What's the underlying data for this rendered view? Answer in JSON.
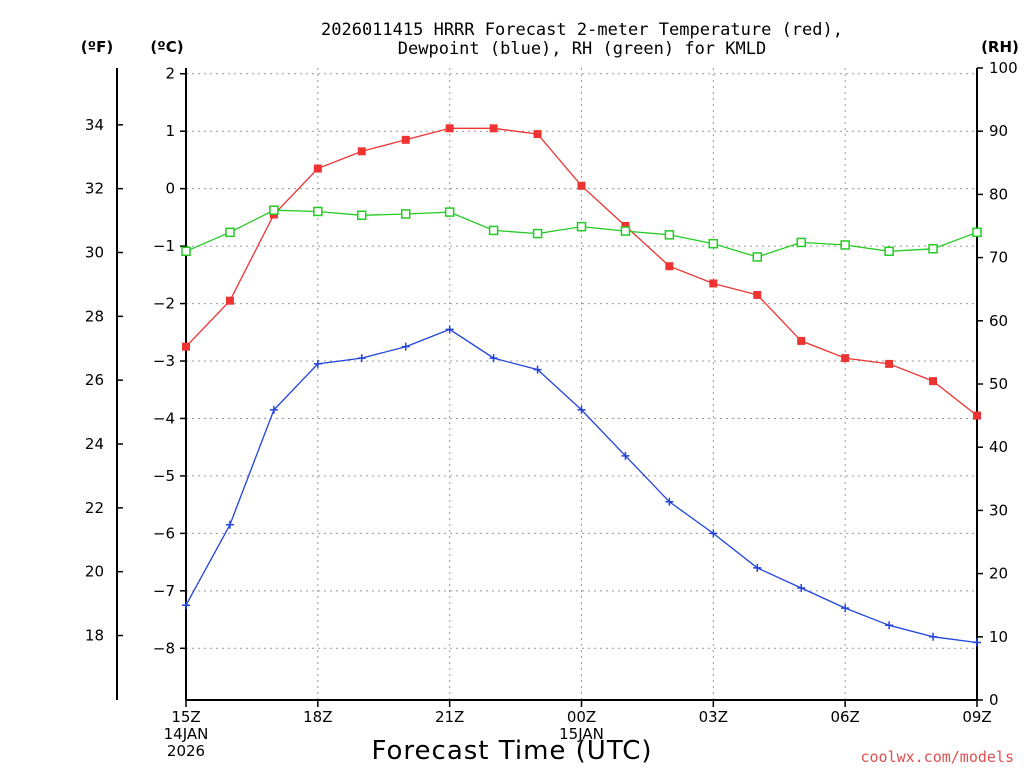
{
  "header": {
    "title_line1": "2026011415 HRRR Forecast 2-meter Temperature (red),",
    "title_line2": "Dewpoint (blue), RH (green) for KMLD",
    "unit_f": "(ºF)",
    "unit_c": "(ºC)",
    "unit_rh": "(RH)"
  },
  "footer": {
    "xlabel": "Forecast Time (UTC)",
    "credit": "coolwx.com/models"
  },
  "colors": {
    "temperature": "#ee3333",
    "dewpoint": "#2244dd",
    "rh": "#22cc22",
    "grid": "#999999",
    "axis": "#000000",
    "credit": "#e05050"
  },
  "chart_data": {
    "type": "line",
    "title": "2026011415 HRRR Forecast 2-meter Temperature (red), Dewpoint (blue), RH (green) for KMLD",
    "xlabel": "Forecast Time (UTC)",
    "x_hours": [
      0,
      1,
      2,
      3,
      4,
      5,
      6,
      7,
      8,
      9,
      10,
      11,
      12,
      13,
      14,
      15,
      16,
      17,
      18
    ],
    "x_tick_hours": [
      0,
      3,
      6,
      9,
      12,
      15,
      18
    ],
    "x_tick_labels": [
      [
        "15Z",
        "14JAN",
        "2026"
      ],
      [
        "18Z"
      ],
      [
        "21Z"
      ],
      [
        "00Z",
        "15JAN"
      ],
      [
        "03Z"
      ],
      [
        "06Z"
      ],
      [
        "09Z"
      ]
    ],
    "y_celsius": {
      "label": "(ºC)",
      "range": [
        -8.9,
        2.1
      ],
      "ticks": [
        2,
        1,
        0,
        -1,
        -2,
        -3,
        -4,
        -5,
        -6,
        -7,
        -8
      ]
    },
    "y_fahrenheit": {
      "label": "(ºF)",
      "ticks": [
        34,
        32,
        30,
        28,
        26,
        24,
        22,
        20,
        18
      ]
    },
    "y_rh": {
      "label": "(RH)",
      "range": [
        0,
        100
      ],
      "ticks": [
        100,
        90,
        80,
        70,
        60,
        50,
        40,
        30,
        20,
        10,
        0
      ]
    },
    "grid": true,
    "series": [
      {
        "name": "Temperature",
        "units": "C",
        "axis": "celsius",
        "marker": "filled-square",
        "color": "#ee3333",
        "values": [
          -2.75,
          -1.95,
          -0.45,
          0.35,
          0.65,
          0.85,
          1.05,
          1.05,
          0.95,
          0.05,
          -0.65,
          -1.35,
          -1.65,
          -1.85,
          -2.65,
          -2.95,
          -3.05,
          -3.35,
          -3.95
        ]
      },
      {
        "name": "Dewpoint",
        "units": "C",
        "axis": "celsius",
        "marker": "plus",
        "color": "#2244dd",
        "values": [
          -7.25,
          -5.85,
          -3.85,
          -3.05,
          -2.95,
          -2.75,
          -2.45,
          -2.95,
          -3.15,
          -3.85,
          -4.65,
          -5.45,
          -6.0,
          -6.6,
          -6.95,
          -7.3,
          -7.6,
          -7.8,
          -7.9
        ]
      },
      {
        "name": "RH",
        "units": "%",
        "axis": "rh",
        "marker": "open-square",
        "color": "#22cc22",
        "values": [
          71,
          74,
          77.5,
          77.3,
          76.7,
          76.9,
          77.2,
          74.3,
          73.8,
          74.9,
          74.2,
          73.6,
          72.2,
          70.1,
          72.4,
          72.0,
          71.0,
          71.4,
          74.0
        ]
      }
    ]
  }
}
